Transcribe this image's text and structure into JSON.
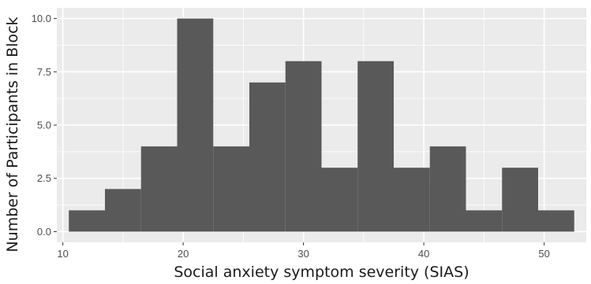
{
  "chart_data": {
    "type": "bar",
    "subtype": "histogram",
    "title": "",
    "xlabel": "Social anxiety symptom severity (SIAS)",
    "ylabel": "Number of Participants in Block",
    "xlim": [
      9.5,
      53.5
    ],
    "ylim": [
      -0.5,
      10.5
    ],
    "x_ticks": [
      10,
      20,
      30,
      40,
      50
    ],
    "x_tick_labels": [
      "10",
      "20",
      "30",
      "40",
      "50"
    ],
    "y_ticks": [
      0,
      2.5,
      5,
      7.5,
      10
    ],
    "y_tick_labels": [
      "0.0",
      "2.5",
      "5.0",
      "7.5",
      "10.0"
    ],
    "grid": true,
    "bar_color": "#595959",
    "panel_background": "#ebebeb",
    "grid_color": "#ffffff",
    "bins": [
      {
        "x0": 10.5,
        "x1": 13.5,
        "value": 1
      },
      {
        "x0": 13.5,
        "x1": 16.5,
        "value": 2
      },
      {
        "x0": 16.5,
        "x1": 19.5,
        "value": 4
      },
      {
        "x0": 19.5,
        "x1": 22.5,
        "value": 10
      },
      {
        "x0": 22.5,
        "x1": 25.5,
        "value": 4
      },
      {
        "x0": 25.5,
        "x1": 28.5,
        "value": 7
      },
      {
        "x0": 28.5,
        "x1": 31.5,
        "value": 8
      },
      {
        "x0": 31.5,
        "x1": 34.5,
        "value": 3
      },
      {
        "x0": 34.5,
        "x1": 37.5,
        "value": 8
      },
      {
        "x0": 37.5,
        "x1": 40.5,
        "value": 3
      },
      {
        "x0": 40.5,
        "x1": 43.5,
        "value": 4
      },
      {
        "x0": 43.5,
        "x1": 46.5,
        "value": 1
      },
      {
        "x0": 46.5,
        "x1": 49.5,
        "value": 3
      },
      {
        "x0": 49.5,
        "x1": 52.5,
        "value": 1
      }
    ]
  }
}
